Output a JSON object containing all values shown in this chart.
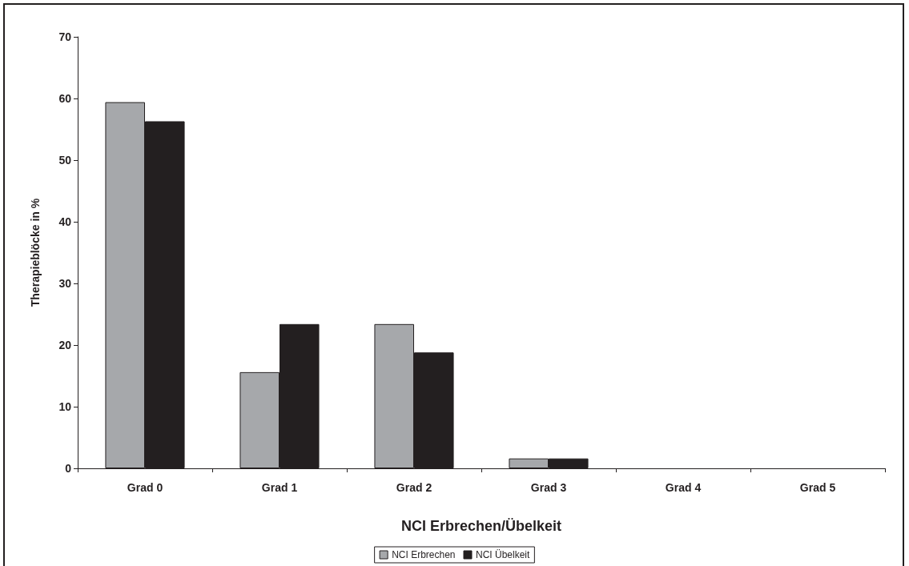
{
  "chart_data": {
    "type": "bar",
    "xlabel": "NCI Erbrechen/Übelkeit",
    "ylabel": "Therapieblöcke in %",
    "categories": [
      "Grad 0",
      "Grad 1",
      "Grad 2",
      "Grad 3",
      "Grad 4",
      "Grad 5"
    ],
    "series": [
      {
        "name": "NCI Erbrechen",
        "color": "#a6a8ab",
        "values": [
          59.4,
          15.6,
          23.4,
          1.6,
          0,
          0
        ]
      },
      {
        "name": "NCI Übelkeit",
        "color": "#231f20",
        "values": [
          56.3,
          23.4,
          18.8,
          1.6,
          0,
          0
        ]
      }
    ],
    "ylim": [
      0,
      70
    ],
    "yticks": [
      0,
      10,
      20,
      30,
      40,
      50,
      60,
      70
    ],
    "legend": "bottom"
  }
}
